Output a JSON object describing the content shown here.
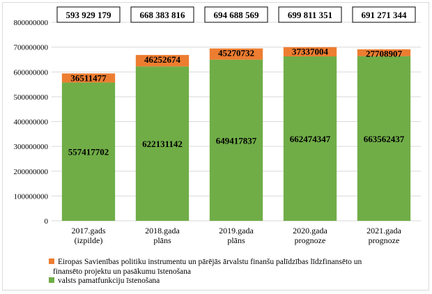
{
  "chart_data": {
    "type": "bar",
    "stacked": true,
    "categories": [
      [
        "2017.gads",
        "(izpilde)"
      ],
      [
        "2018.gada",
        "plāns"
      ],
      [
        "2019.gada",
        "plāns"
      ],
      [
        "2020.gada",
        "prognoze"
      ],
      [
        "2021.gada",
        "prognoze"
      ]
    ],
    "series": [
      {
        "name": "valsts pamatfunkciju īstenošana",
        "color": "#70ad47",
        "values": [
          557417702,
          622131142,
          649417837,
          662474347,
          663562437
        ]
      },
      {
        "name": "Eiropas Savienības politiku instrumentu un pārējās ārvalstu finanšu palīdzības līdzfinansēto un finansēto projektu un pasākumu īstenošana",
        "color": "#ed7d31",
        "values": [
          36511477,
          46252674,
          45270732,
          37337004,
          27708907
        ]
      }
    ],
    "totals": [
      "593 929 179",
      "668 383 816",
      "694 688 569",
      "699 811 351",
      "691 271 344"
    ],
    "ylim": [
      0,
      800000000
    ],
    "yticks": [
      0,
      100000000,
      200000000,
      300000000,
      400000000,
      500000000,
      600000000,
      700000000,
      800000000
    ],
    "grid": true,
    "legend_position": "bottom-left",
    "legend": {
      "line1": "Eiropas Savienības politiku instrumentu un pārējās ārvalstu finanšu palīdzības līdzfinansēto un",
      "line2": "finansēto projektu un pasākumu īstenošana",
      "line3": "valsts pamatfunkciju īstenošana"
    }
  }
}
